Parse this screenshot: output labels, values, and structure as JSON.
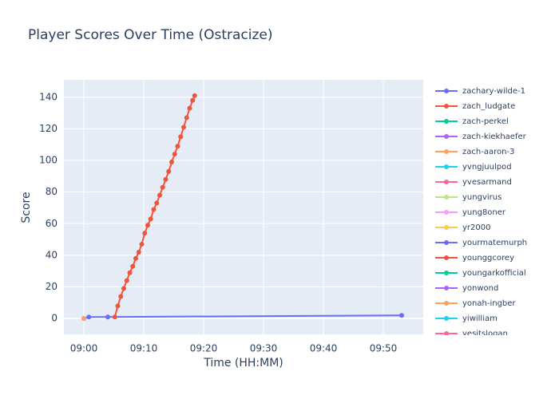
{
  "chart_data": {
    "type": "line",
    "title": "Player Scores Over Time (Ostracize)",
    "x_label": "Time (HH:MM)",
    "y_label": "Score",
    "xlim": [
      "08:56:40",
      "09:56:40"
    ],
    "xticks": [
      {
        "value": "09:00:00",
        "label": "09:00"
      },
      {
        "value": "09:10:00",
        "label": "09:10"
      },
      {
        "value": "09:20:00",
        "label": "09:20"
      },
      {
        "value": "09:30:00",
        "label": "09:30"
      },
      {
        "value": "09:40:00",
        "label": "09:40"
      },
      {
        "value": "09:50:00",
        "label": "09:50"
      }
    ],
    "ylim": [
      -10,
      151
    ],
    "yticks": [
      0,
      20,
      40,
      60,
      80,
      100,
      120,
      140
    ],
    "grid": true,
    "series": [
      {
        "name": "zachary-wilde-1",
        "color": "#636efa",
        "x": [
          "09:00:00",
          "09:00:50",
          "09:04:00",
          "09:53:04"
        ],
        "values": [
          0,
          1,
          1,
          2
        ]
      },
      {
        "name": "zach_ludgate",
        "color": "#EF553B",
        "x": [
          "09:05:10",
          "09:05:40",
          "09:06:10",
          "09:06:40",
          "09:07:10",
          "09:07:40",
          "09:08:10",
          "09:08:40",
          "09:09:10",
          "09:09:40",
          "09:10:10",
          "09:10:40",
          "09:11:10",
          "09:11:40",
          "09:12:10",
          "09:12:40",
          "09:13:10",
          "09:13:40",
          "09:14:10",
          "09:14:40",
          "09:15:10",
          "09:15:40",
          "09:16:10",
          "09:16:40",
          "09:17:10",
          "09:17:40",
          "09:18:10",
          "09:18:30"
        ],
        "values": [
          1,
          8,
          14,
          19,
          24,
          29,
          33,
          38,
          42,
          47,
          54,
          59,
          63,
          69,
          73,
          78,
          83,
          88,
          93,
          99,
          104,
          109,
          115,
          121,
          127,
          133,
          138,
          141
        ]
      },
      {
        "name": "zach-perkel",
        "color": "#00cc96",
        "x": [],
        "values": []
      },
      {
        "name": "zach-kiekhaefer",
        "color": "#ab63fa",
        "x": [],
        "values": []
      },
      {
        "name": "zach-aaron-3",
        "color": "#FFA15A",
        "x": [
          "09:00:00"
        ],
        "values": [
          0
        ]
      },
      {
        "name": "yvngjuulpod",
        "color": "#19d3f3",
        "x": [],
        "values": []
      },
      {
        "name": "yvesarmand",
        "color": "#FF6692",
        "x": [],
        "values": []
      },
      {
        "name": "yungvirus",
        "color": "#B6E880",
        "x": [],
        "values": []
      },
      {
        "name": "yung8oner",
        "color": "#FF97FF",
        "x": [],
        "values": []
      },
      {
        "name": "yr2000",
        "color": "#FECB52",
        "x": [],
        "values": []
      },
      {
        "name": "yourmatemurph",
        "color": "#636efa",
        "x": [],
        "values": []
      },
      {
        "name": "younggcorey",
        "color": "#EF553B",
        "x": [],
        "values": []
      },
      {
        "name": "youngarkofficial",
        "color": "#00cc96",
        "x": [],
        "values": []
      },
      {
        "name": "yonwond",
        "color": "#ab63fa",
        "x": [],
        "values": []
      },
      {
        "name": "yonah-ingber",
        "color": "#FFA15A",
        "x": [],
        "values": []
      },
      {
        "name": "yiwilliam",
        "color": "#19d3f3",
        "x": [],
        "values": []
      },
      {
        "name": "yesitslogan",
        "color": "#FF6692",
        "x": [],
        "values": []
      }
    ]
  }
}
